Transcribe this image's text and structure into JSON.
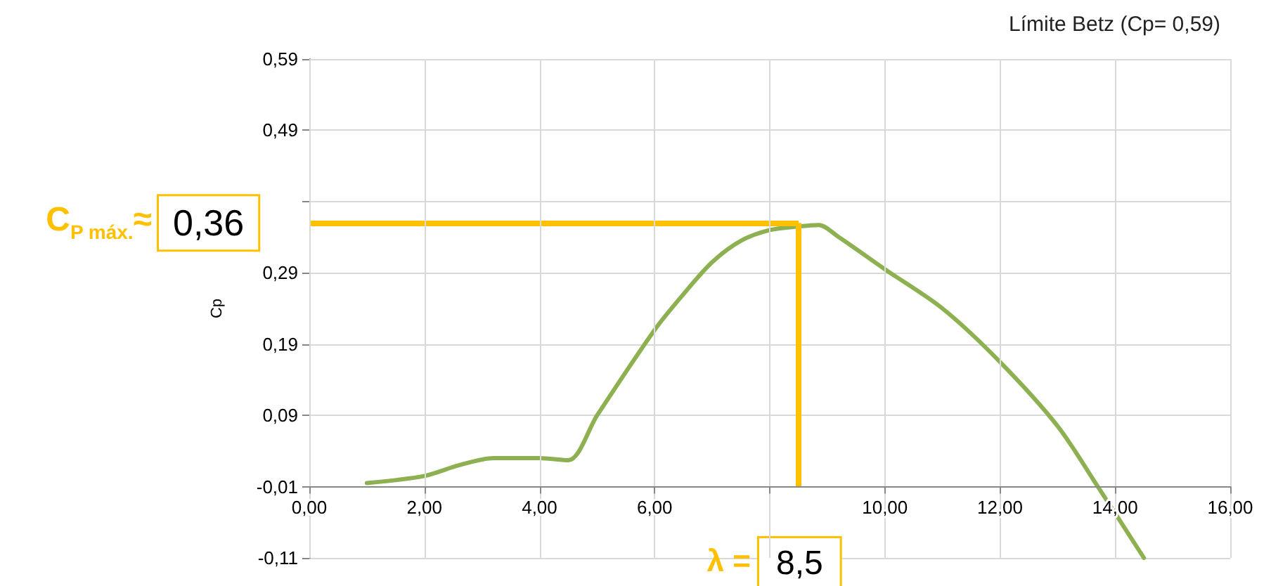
{
  "chart_data": {
    "type": "line",
    "ylabel": "Cp",
    "annotations": [
      "Límite Betz (Cp= 0,59)",
      "C$_{P máx.}$≈",
      "λ ="
    ],
    "x": [
      1.0,
      2.0,
      2.6,
      3.2,
      4.0,
      4.5,
      5.0,
      6.0,
      6.5,
      7.0,
      7.5,
      8.0,
      8.5,
      8.85,
      9.2,
      10.0,
      11.0,
      12.0,
      13.0,
      13.7,
      14.5
    ],
    "series": [
      {
        "color": "#8db050",
        "values": [
          -0.005,
          0.005,
          0.02,
          0.03,
          0.03,
          0.027,
          0.09,
          0.21,
          0.26,
          0.305,
          0.335,
          0.35,
          0.355,
          0.357,
          0.34,
          0.295,
          0.24,
          0.165,
          0.075,
          -0.01,
          -0.11
        ]
      }
    ],
    "xlim": [
      0,
      16
    ],
    "xticks": [
      {
        "value": 0,
        "label": "0,00"
      },
      {
        "value": 2,
        "label": "2,00"
      },
      {
        "value": 4,
        "label": "4,00"
      },
      {
        "value": 6,
        "label": "6,00"
      },
      {
        "value": 8,
        "label": null
      },
      {
        "value": 10,
        "label": "10,00"
      },
      {
        "value": 12,
        "label": "12,00"
      },
      {
        "value": 14,
        "label": "14,00"
      },
      {
        "value": 16,
        "label": "16,00"
      }
    ],
    "ylim": [
      -0.11,
      0.59
    ],
    "yticks": [
      {
        "value": -0.11,
        "label": "-0,11"
      },
      {
        "value": -0.01,
        "label": "-0,01"
      },
      {
        "value": 0.09,
        "label": "0,09"
      },
      {
        "value": 0.19,
        "label": "0,19"
      },
      {
        "value": 0.29,
        "label": "0,29"
      },
      {
        "value": 0.39,
        "label": null
      },
      {
        "value": 0.49,
        "label": "0,49"
      },
      {
        "value": 0.59,
        "label": "0,59"
      }
    ],
    "grid": true,
    "marker": "none",
    "line_style": "solid",
    "ref_lines": [
      {
        "axis": "y",
        "value": 0.36,
        "label": "0,36",
        "color": "#ffc000"
      },
      {
        "axis": "x",
        "value": 8.5,
        "label": "8,5",
        "color": "#ffc000"
      }
    ]
  }
}
